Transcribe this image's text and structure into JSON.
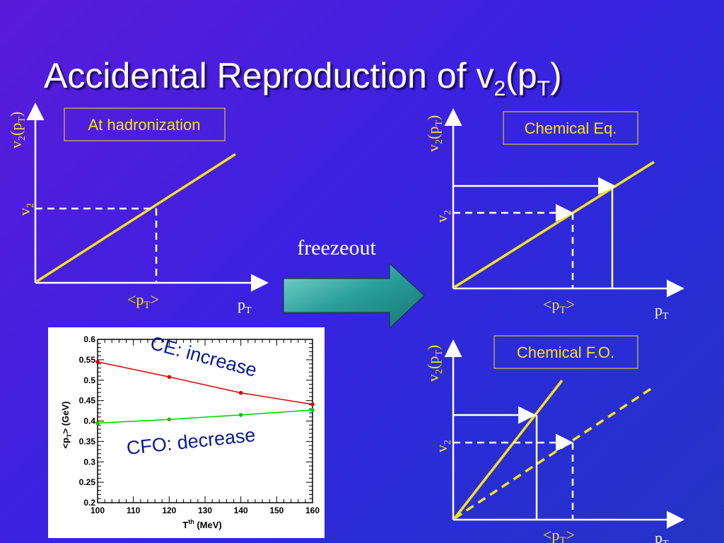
{
  "slide": {
    "title_main": "Accidental Reproduction of v",
    "title_sub1": "2",
    "title_paren_open": "(p",
    "title_sub2": "T",
    "title_paren_close": ")"
  },
  "diagram_left": {
    "box_label": "At hadronization",
    "y_axis": "v",
    "y_axis_sub": "2",
    "y_axis_paren": "(p",
    "y_axis_sub2": "T",
    "y_axis_close": ")",
    "v2_label": "v",
    "v2_sub": "2",
    "pt_mean": "<p",
    "pt_mean_sub": "T",
    "pt_mean_close": ">",
    "x_axis": "p",
    "x_axis_sub": "T"
  },
  "arrow": {
    "label": "freezeout"
  },
  "diagram_ce": {
    "box_label": "Chemical Eq.",
    "y_axis": "v",
    "y_axis_sub": "2",
    "y_axis_paren": "(p",
    "y_axis_sub2": "T",
    "y_axis_close": ")",
    "v2_label": "v",
    "v2_sub": "2",
    "pt_mean": "<p",
    "pt_mean_sub": "T",
    "pt_mean_close": ">",
    "x_axis": "p",
    "x_axis_sub": "T"
  },
  "diagram_cfo": {
    "box_label": "Chemical F.O.",
    "y_axis": "v",
    "y_axis_sub": "2",
    "y_axis_paren": "(p",
    "y_axis_sub2": "T",
    "y_axis_close": ")",
    "v2_label": "v",
    "v2_sub": "2",
    "pt_mean": "<p",
    "pt_mean_sub": "T",
    "pt_mean_close": ">",
    "x_axis": "p",
    "x_axis_sub": "T"
  },
  "colors": {
    "yellow": "#f5e21d",
    "arrow_fill": "#2a9e9a",
    "ce_series": "#e00000",
    "cfo_series": "#00cc00"
  },
  "chart_data": {
    "type": "line",
    "x": [
      100,
      120,
      140,
      160
    ],
    "xlim": [
      100,
      160
    ],
    "ylim": [
      0.2,
      0.6
    ],
    "x_ticks": [
      "100",
      "110",
      "120",
      "130",
      "140",
      "150",
      "160"
    ],
    "y_ticks": [
      "0.6",
      "0.55",
      "0.5",
      "0.45",
      "0.4",
      "0.35",
      "0.3",
      "0.25",
      "0.2"
    ],
    "xlabel": "T",
    "xlabel_sup": "th",
    "xlabel_unit": " (MeV)",
    "ylabel": "<p",
    "ylabel_sub": "T",
    "ylabel_unit": "> (GeV)",
    "series": [
      {
        "name": "CE: increase",
        "color": "#e00000",
        "values": [
          0.545,
          0.508,
          0.469,
          0.441
        ]
      },
      {
        "name": "CFO: decrease",
        "color": "#00cc00",
        "values": [
          0.395,
          0.404,
          0.415,
          0.427
        ]
      }
    ]
  }
}
